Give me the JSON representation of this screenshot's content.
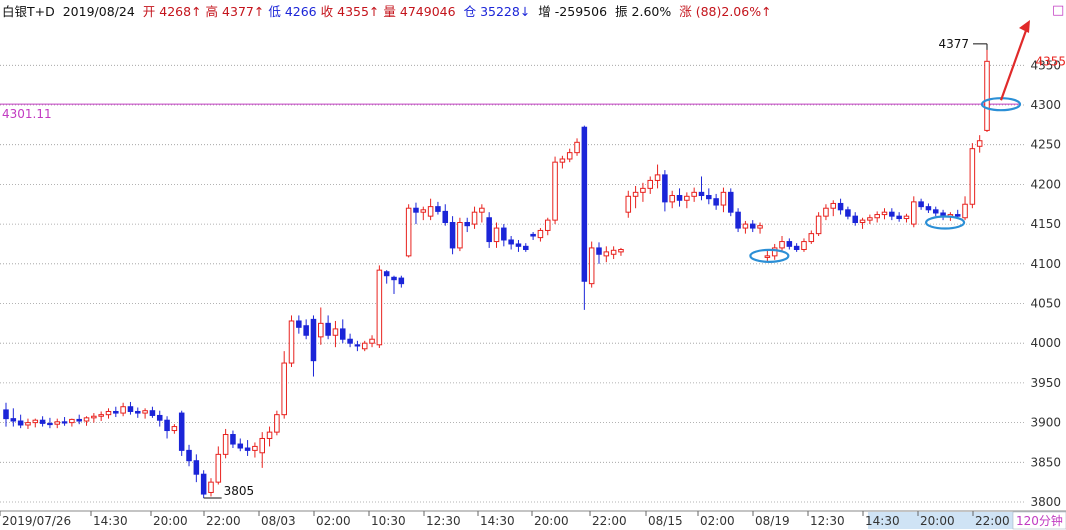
{
  "header": {
    "instrument": "白银T+D",
    "date": "2019/08/24",
    "open_label": "开",
    "open": "4268↑",
    "high_label": "高",
    "high": "4377↑",
    "low_label": "低",
    "low": "4266",
    "close_label": "收",
    "close": "4355↑",
    "volume_label": "量",
    "volume": "4749046",
    "oi_label": "仓",
    "oi": "35228↓",
    "oi_chg_label": "增",
    "oi_chg": "-259506",
    "amp_label": "振",
    "amp": "2.60%",
    "chg_label": "涨",
    "chg": "(88)2.06%↑",
    "corner_box": "□"
  },
  "period_label": "120分钟",
  "colors": {
    "up": "#e8221e",
    "down": "#1b25d8",
    "ref_line": "#c23bc2",
    "marker": "#2b8fd6",
    "arrow": "#e02a2a",
    "price_tag": "#e8221e"
  },
  "icons": [
    "circle-marker-icon",
    "arrow-up-right-icon",
    "square-icon"
  ],
  "chart_data": {
    "type": "candlestick",
    "ylim": [
      3790,
      4390
    ],
    "yticks": [
      3800,
      3850,
      3900,
      3950,
      4000,
      4050,
      4100,
      4150,
      4200,
      4250,
      4300,
      4350
    ],
    "grid": true,
    "reference_line": {
      "value": 4301.11,
      "label": "4301.11"
    },
    "last_price": {
      "value": 4355,
      "label": "4355"
    },
    "annotations": [
      {
        "label": "4377",
        "value": 4377
      },
      {
        "label": "3805",
        "value": 3805
      }
    ],
    "x_labels": [
      "2019/07/26",
      "14:30",
      "20:00",
      "22:00",
      "08/03",
      "02:00",
      "10:30",
      "12:30",
      "14:30",
      "20:00",
      "22:00",
      "08/15",
      "02:00",
      "08/19",
      "12:30",
      "14:30",
      "20:00",
      "22:00"
    ],
    "candles": [
      [
        3916,
        3925,
        3895,
        3905
      ],
      [
        3905,
        3918,
        3895,
        3902
      ],
      [
        3902,
        3910,
        3893,
        3897
      ],
      [
        3897,
        3905,
        3892,
        3900
      ],
      [
        3900,
        3905,
        3894,
        3903
      ],
      [
        3903,
        3908,
        3895,
        3899
      ],
      [
        3899,
        3906,
        3893,
        3898
      ],
      [
        3898,
        3905,
        3893,
        3901
      ],
      [
        3901,
        3907,
        3896,
        3900
      ],
      [
        3900,
        3905,
        3895,
        3904
      ],
      [
        3904,
        3910,
        3898,
        3902
      ],
      [
        3902,
        3908,
        3896,
        3906
      ],
      [
        3906,
        3912,
        3900,
        3908
      ],
      [
        3908,
        3914,
        3902,
        3910
      ],
      [
        3910,
        3918,
        3905,
        3914
      ],
      [
        3914,
        3920,
        3907,
        3912
      ],
      [
        3912,
        3925,
        3908,
        3920
      ],
      [
        3920,
        3926,
        3910,
        3914
      ],
      [
        3914,
        3919,
        3906,
        3912
      ],
      [
        3912,
        3918,
        3905,
        3915
      ],
      [
        3915,
        3920,
        3906,
        3909
      ],
      [
        3909,
        3915,
        3895,
        3903
      ],
      [
        3903,
        3908,
        3880,
        3890
      ],
      [
        3890,
        3898,
        3886,
        3895
      ],
      [
        3912,
        3915,
        3858,
        3865
      ],
      [
        3865,
        3872,
        3845,
        3852
      ],
      [
        3852,
        3860,
        3825,
        3835
      ],
      [
        3835,
        3840,
        3805,
        3810
      ],
      [
        3812,
        3830,
        3807,
        3825
      ],
      [
        3825,
        3870,
        3822,
        3860
      ],
      [
        3860,
        3892,
        3855,
        3885
      ],
      [
        3885,
        3890,
        3868,
        3873
      ],
      [
        3873,
        3880,
        3864,
        3868
      ],
      [
        3868,
        3878,
        3858,
        3865
      ],
      [
        3865,
        3875,
        3856,
        3870
      ],
      [
        3862,
        3888,
        3843,
        3880
      ],
      [
        3880,
        3895,
        3870,
        3888
      ],
      [
        3888,
        3915,
        3884,
        3910
      ],
      [
        3910,
        3990,
        3905,
        3975
      ],
      [
        3975,
        4035,
        3970,
        4028
      ],
      [
        4028,
        4035,
        4012,
        4020
      ],
      [
        4022,
        4030,
        4005,
        4010
      ],
      [
        4030,
        4035,
        3958,
        3978
      ],
      [
        4008,
        4045,
        3998,
        4025
      ],
      [
        4025,
        4035,
        4005,
        4010
      ],
      [
        4010,
        4028,
        3995,
        4018
      ],
      [
        4018,
        4030,
        4000,
        4005
      ],
      [
        4005,
        4012,
        3995,
        4000
      ],
      [
        3998,
        4003,
        3990,
        3997
      ],
      [
        3993,
        4003,
        3990,
        4000
      ],
      [
        4000,
        4010,
        3995,
        4005
      ],
      [
        3998,
        4098,
        3994,
        4092
      ],
      [
        4090,
        4092,
        4075,
        4085
      ],
      [
        4083,
        4085,
        4062,
        4080
      ],
      [
        4082,
        4085,
        4070,
        4075
      ],
      [
        4110,
        4175,
        4108,
        4170
      ],
      [
        4170,
        4177,
        4150,
        4165
      ],
      [
        4165,
        4172,
        4155,
        4168
      ],
      [
        4160,
        4182,
        4155,
        4172
      ],
      [
        4172,
        4178,
        4162,
        4166
      ],
      [
        4166,
        4175,
        4148,
        4152
      ],
      [
        4152,
        4160,
        4112,
        4120
      ],
      [
        4120,
        4158,
        4116,
        4152
      ],
      [
        4152,
        4158,
        4140,
        4148
      ],
      [
        4150,
        4172,
        4144,
        4165
      ],
      [
        4165,
        4175,
        4152,
        4170
      ],
      [
        4158,
        4165,
        4120,
        4128
      ],
      [
        4128,
        4152,
        4120,
        4145
      ],
      [
        4145,
        4150,
        4122,
        4130
      ],
      [
        4130,
        4135,
        4118,
        4125
      ],
      [
        4125,
        4130,
        4115,
        4122
      ],
      [
        4122,
        4126,
        4115,
        4118
      ],
      [
        4137,
        4140,
        4130,
        4135
      ],
      [
        4133,
        4145,
        4128,
        4142
      ],
      [
        4142,
        4158,
        4136,
        4155
      ],
      [
        4155,
        4235,
        4150,
        4228
      ],
      [
        4228,
        4236,
        4220,
        4232
      ],
      [
        4232,
        4245,
        4228,
        4240
      ],
      [
        4240,
        4258,
        4236,
        4253
      ],
      [
        4272,
        4274,
        4042,
        4078
      ],
      [
        4075,
        4128,
        4070,
        4120
      ],
      [
        4120,
        4127,
        4100,
        4112
      ],
      [
        4110,
        4122,
        4102,
        4115
      ],
      [
        4112,
        4122,
        4106,
        4117
      ],
      [
        4115,
        4120,
        4110,
        4118
      ],
      [
        4165,
        4192,
        4158,
        4185
      ],
      [
        4185,
        4198,
        4170,
        4190
      ],
      [
        4190,
        4202,
        4178,
        4195
      ],
      [
        4195,
        4210,
        4188,
        4205
      ],
      [
        4205,
        4225,
        4195,
        4212
      ],
      [
        4212,
        4218,
        4166,
        4178
      ],
      [
        4178,
        4192,
        4170,
        4186
      ],
      [
        4186,
        4195,
        4172,
        4180
      ],
      [
        4180,
        4190,
        4170,
        4185
      ],
      [
        4185,
        4196,
        4178,
        4190
      ],
      [
        4190,
        4210,
        4180,
        4186
      ],
      [
        4186,
        4195,
        4175,
        4182
      ],
      [
        4182,
        4188,
        4168,
        4174
      ],
      [
        4174,
        4196,
        4165,
        4190
      ],
      [
        4190,
        4195,
        4160,
        4165
      ],
      [
        4165,
        4170,
        4140,
        4145
      ],
      [
        4145,
        4154,
        4138,
        4150
      ],
      [
        4150,
        4155,
        4140,
        4145
      ],
      [
        4145,
        4152,
        4138,
        4148
      ],
      [
        4108,
        4118,
        4103,
        4110
      ],
      [
        4110,
        4125,
        4105,
        4120
      ],
      [
        4120,
        4135,
        4115,
        4128
      ],
      [
        4128,
        4132,
        4118,
        4122
      ],
      [
        4122,
        4126,
        4115,
        4118
      ],
      [
        4118,
        4132,
        4115,
        4128
      ],
      [
        4128,
        4142,
        4125,
        4138
      ],
      [
        4138,
        4165,
        4135,
        4160
      ],
      [
        4160,
        4175,
        4155,
        4170
      ],
      [
        4170,
        4180,
        4160,
        4176
      ],
      [
        4176,
        4182,
        4162,
        4168
      ],
      [
        4168,
        4172,
        4156,
        4160
      ],
      [
        4160,
        4165,
        4148,
        4152
      ],
      [
        4152,
        4158,
        4144,
        4155
      ],
      [
        4155,
        4162,
        4150,
        4158
      ],
      [
        4158,
        4166,
        4152,
        4162
      ],
      [
        4162,
        4170,
        4156,
        4165
      ],
      [
        4165,
        4170,
        4155,
        4160
      ],
      [
        4160,
        4165,
        4153,
        4157
      ],
      [
        4157,
        4163,
        4152,
        4160
      ],
      [
        4150,
        4185,
        4146,
        4178
      ],
      [
        4178,
        4182,
        4168,
        4172
      ],
      [
        4172,
        4176,
        4164,
        4168
      ],
      [
        4168,
        4172,
        4160,
        4164
      ],
      [
        4164,
        4168,
        4155,
        4160
      ],
      [
        4160,
        4165,
        4154,
        4162
      ],
      [
        4162,
        4168,
        4158,
        4160
      ],
      [
        4158,
        4185,
        4155,
        4175
      ],
      [
        4175,
        4252,
        4170,
        4245
      ],
      [
        4248,
        4262,
        4240,
        4255
      ],
      [
        4268,
        4377,
        4266,
        4355
      ]
    ]
  }
}
